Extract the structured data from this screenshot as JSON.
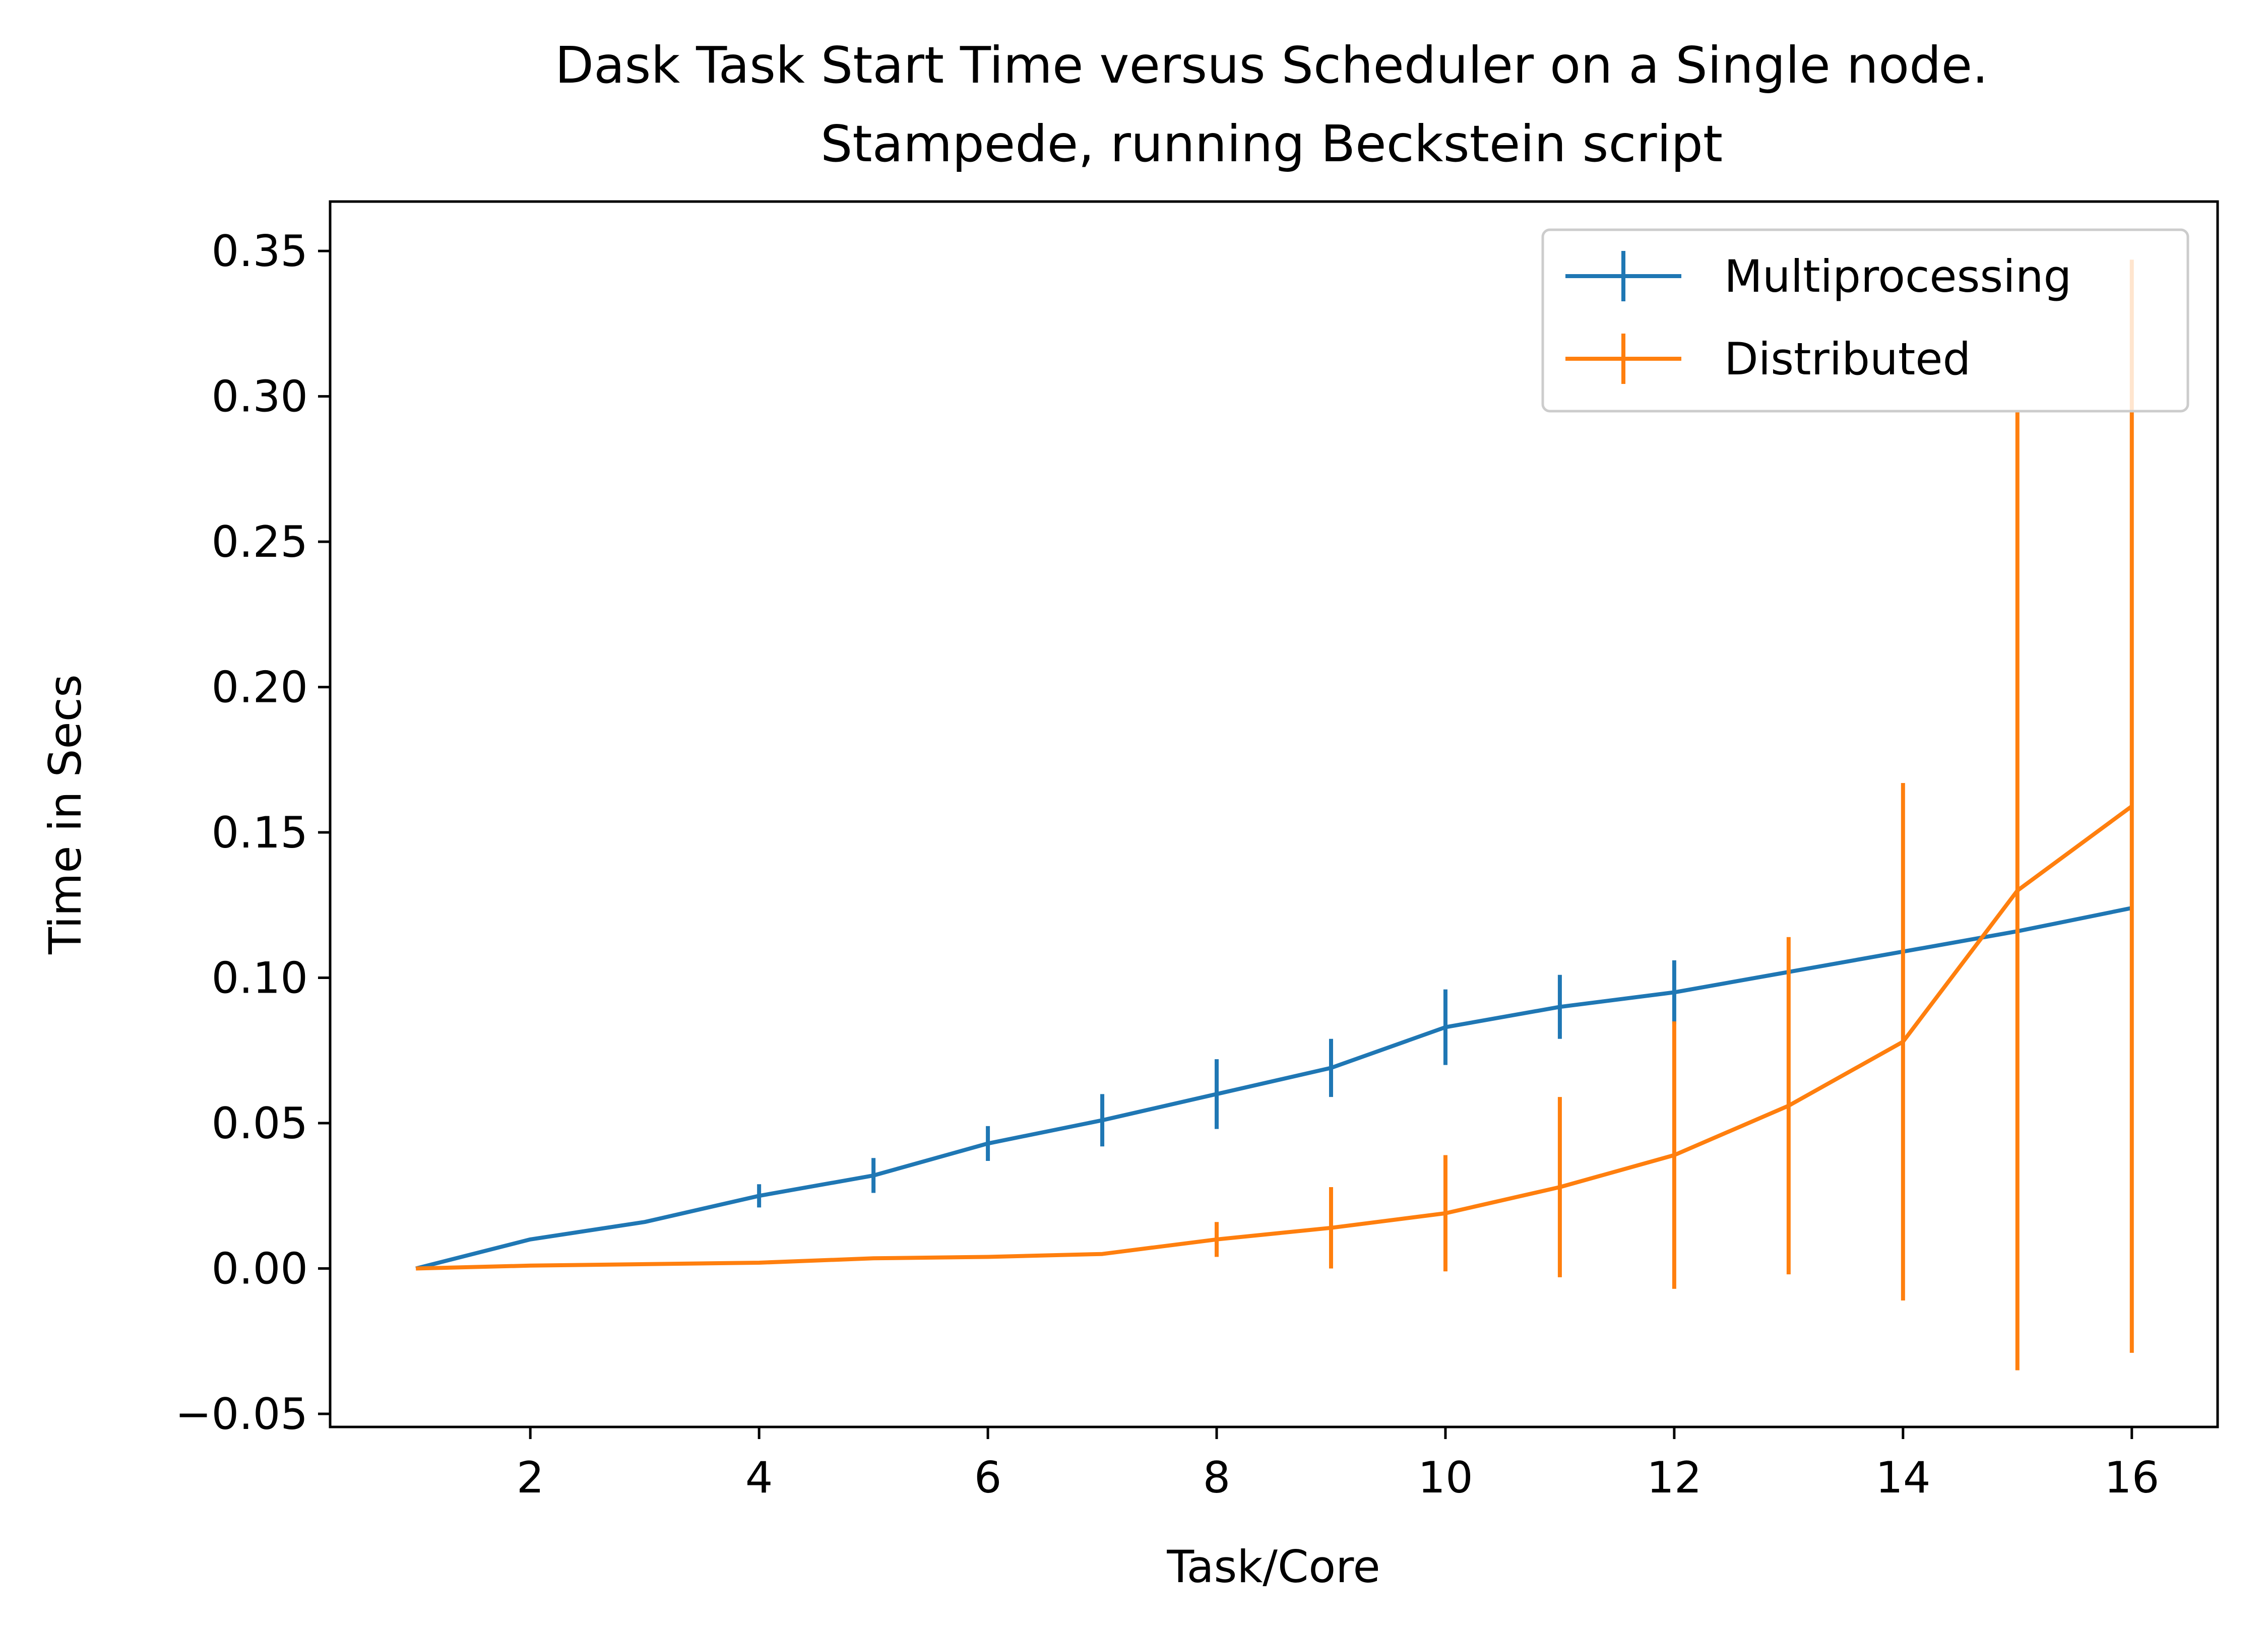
{
  "chart_data": {
    "type": "line",
    "title": "Dask Task Start Time versus Scheduler on a Single node.",
    "subtitle": "Stampede, running Beckstein script",
    "xlabel": "Task/Core",
    "ylabel": "Time in Secs",
    "xlim": [
      0.25,
      16.75
    ],
    "ylim": [
      -0.0545,
      0.367
    ],
    "xticks": [
      2,
      4,
      6,
      8,
      10,
      12,
      14,
      16
    ],
    "yticks": [
      -0.05,
      0.0,
      0.05,
      0.1,
      0.15,
      0.2,
      0.25,
      0.3,
      0.35
    ],
    "xtick_labels": [
      "2",
      "4",
      "6",
      "8",
      "10",
      "12",
      "14",
      "16"
    ],
    "ytick_labels": [
      "−0.05",
      "0.00",
      "0.05",
      "0.10",
      "0.15",
      "0.20",
      "0.25",
      "0.30",
      "0.35"
    ],
    "grid": false,
    "legend": "top-right",
    "series": [
      {
        "name": "Multiprocessing",
        "color": "#1f77b4",
        "x": [
          1,
          2,
          3,
          4,
          5,
          6,
          7,
          8,
          9,
          10,
          11,
          12,
          13,
          14,
          15,
          16
        ],
        "y": [
          0.0,
          0.01,
          0.016,
          0.025,
          0.032,
          0.043,
          0.051,
          0.06,
          0.069,
          0.083,
          0.09,
          0.095,
          0.102,
          0.109,
          0.116,
          0.124
        ],
        "yerr": [
          0.0,
          0.0,
          0.0,
          0.004,
          0.006,
          0.006,
          0.009,
          0.012,
          0.01,
          0.013,
          0.011,
          0.011,
          0.0,
          0.0,
          0.0,
          0.0
        ]
      },
      {
        "name": "Distributed",
        "color": "#ff7f0e",
        "x": [
          1,
          2,
          3,
          4,
          5,
          6,
          7,
          8,
          9,
          10,
          11,
          12,
          13,
          14,
          15,
          16
        ],
        "y": [
          0.0,
          0.001,
          0.0015,
          0.002,
          0.0035,
          0.004,
          0.005,
          0.01,
          0.014,
          0.019,
          0.028,
          0.039,
          0.056,
          0.078,
          0.13,
          0.159
        ],
        "yerr": [
          0.0,
          0.0,
          0.0,
          0.0,
          0.0,
          0.0,
          0.0,
          0.006,
          0.014,
          0.02,
          0.031,
          0.046,
          0.058,
          0.089,
          0.165,
          0.188
        ]
      }
    ]
  }
}
